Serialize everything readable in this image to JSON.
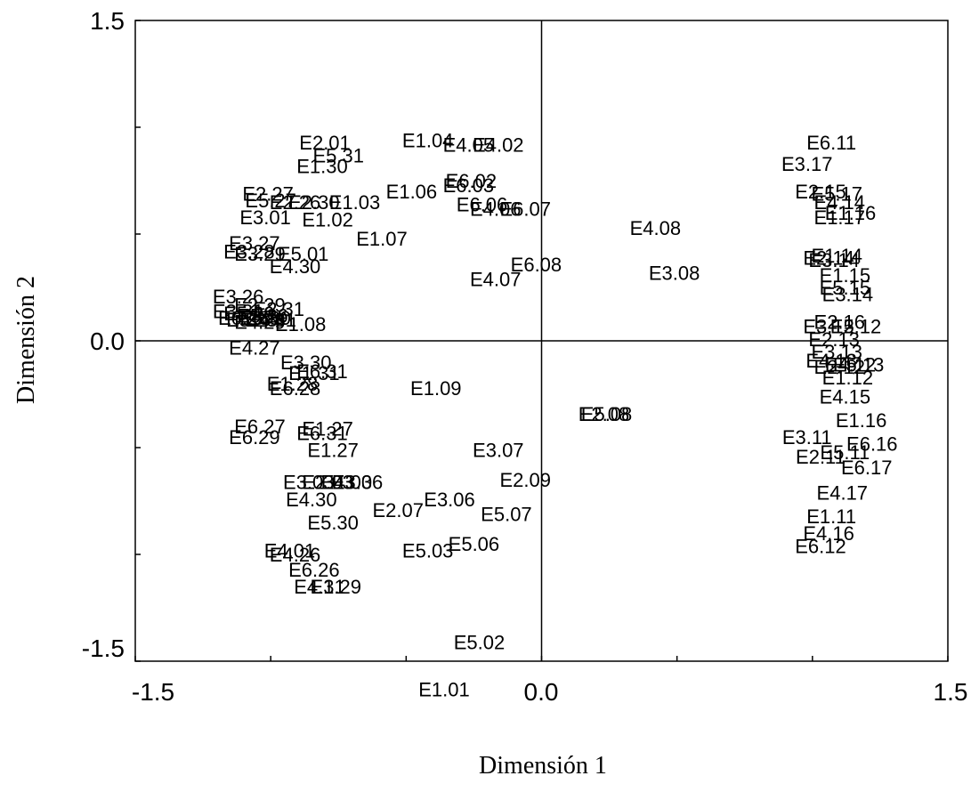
{
  "chart_data": {
    "type": "scatter",
    "title": "",
    "xlabel": "Dimensión 1",
    "ylabel": "Dimensión 2",
    "xlim": [
      -1.5,
      1.5
    ],
    "ylim": [
      -1.5,
      1.5
    ],
    "x_tick_labels": [
      "-1.5",
      "0.0",
      "1.5"
    ],
    "y_tick_labels": [
      "1.5",
      "0.0",
      "-1.5"
    ],
    "grid": false,
    "reference_lines": [
      0,
      0
    ],
    "points": [
      {
        "label": "E2.01",
        "x": -0.8,
        "y": 0.92
      },
      {
        "label": "E1.04",
        "x": -0.42,
        "y": 0.93
      },
      {
        "label": "E4.05",
        "x": -0.27,
        "y": 0.91
      },
      {
        "label": "E4.02",
        "x": -0.16,
        "y": 0.91
      },
      {
        "label": "E5.31",
        "x": -0.75,
        "y": 0.86
      },
      {
        "label": "E1.30",
        "x": -0.81,
        "y": 0.81
      },
      {
        "label": "E6.02",
        "x": -0.26,
        "y": 0.74
      },
      {
        "label": "E6.03",
        "x": -0.27,
        "y": 0.72
      },
      {
        "label": "E1.06",
        "x": -0.48,
        "y": 0.69
      },
      {
        "label": "E2.27",
        "x": -1.01,
        "y": 0.68
      },
      {
        "label": "E5.27",
        "x": -1.0,
        "y": 0.65
      },
      {
        "label": "E2.26",
        "x": -0.91,
        "y": 0.64
      },
      {
        "label": "E2.30",
        "x": -0.84,
        "y": 0.64
      },
      {
        "label": "E1.03",
        "x": -0.69,
        "y": 0.64
      },
      {
        "label": "E6.06",
        "x": -0.22,
        "y": 0.63
      },
      {
        "label": "E4.06",
        "x": -0.17,
        "y": 0.61
      },
      {
        "label": "E6.07",
        "x": -0.06,
        "y": 0.61
      },
      {
        "label": "E3.01",
        "x": -1.02,
        "y": 0.57
      },
      {
        "label": "E1.02",
        "x": -0.79,
        "y": 0.56
      },
      {
        "label": "E4.08",
        "x": 0.42,
        "y": 0.52
      },
      {
        "label": "E1.07",
        "x": -0.59,
        "y": 0.47
      },
      {
        "label": "E3.27",
        "x": -1.06,
        "y": 0.45
      },
      {
        "label": "E3.28",
        "x": -1.08,
        "y": 0.41
      },
      {
        "label": "E3.29",
        "x": -1.04,
        "y": 0.4
      },
      {
        "label": "E5.01",
        "x": -0.88,
        "y": 0.4
      },
      {
        "label": "E4.30",
        "x": -0.91,
        "y": 0.34
      },
      {
        "label": "E6.08",
        "x": -0.02,
        "y": 0.35
      },
      {
        "label": "E3.08",
        "x": 0.49,
        "y": 0.31
      },
      {
        "label": "E4.07",
        "x": -0.17,
        "y": 0.28
      },
      {
        "label": "E3.26",
        "x": -1.12,
        "y": 0.2
      },
      {
        "label": "E2.29",
        "x": -1.04,
        "y": 0.16
      },
      {
        "label": "E2.31",
        "x": -0.97,
        "y": 0.14
      },
      {
        "label": "E5.29",
        "x": -1.08,
        "y": 0.12
      },
      {
        "label": "E6.30",
        "x": -1.02,
        "y": 0.1
      },
      {
        "label": "E3.31",
        "x": -1.12,
        "y": 0.13
      },
      {
        "label": "E5.28",
        "x": -1.07,
        "y": 0.09
      },
      {
        "label": "E4.29",
        "x": -1.04,
        "y": 0.08
      },
      {
        "label": "E6.26",
        "x": -1.1,
        "y": 0.1
      },
      {
        "label": "E4.31",
        "x": -1.0,
        "y": 0.09
      },
      {
        "label": "E5.26",
        "x": -1.03,
        "y": 0.11
      },
      {
        "label": "E1.08",
        "x": -0.89,
        "y": 0.07
      },
      {
        "label": "E4.27",
        "x": -1.06,
        "y": -0.04
      },
      {
        "label": "E3.30",
        "x": -0.87,
        "y": -0.11
      },
      {
        "label": "E6.31",
        "x": -0.81,
        "y": -0.15
      },
      {
        "label": "E1.31",
        "x": -0.84,
        "y": -0.16
      },
      {
        "label": "E6.28",
        "x": -0.91,
        "y": -0.23
      },
      {
        "label": "E1.28",
        "x": -0.92,
        "y": -0.21
      },
      {
        "label": "E1.09",
        "x": -0.39,
        "y": -0.23
      },
      {
        "label": "E2.08",
        "x": 0.23,
        "y": -0.35
      },
      {
        "label": "E5.08",
        "x": 0.24,
        "y": -0.35
      },
      {
        "label": "E6.27",
        "x": -1.04,
        "y": -0.41
      },
      {
        "label": "E6.29",
        "x": -1.06,
        "y": -0.46
      },
      {
        "label": "E1.27",
        "x": -0.79,
        "y": -0.42
      },
      {
        "label": "E6.31b",
        "display": "E6.31",
        "x": -0.81,
        "y": -0.44
      },
      {
        "label": "E1.27b",
        "display": "E1.27",
        "x": -0.77,
        "y": -0.52
      },
      {
        "label": "E3.07",
        "x": -0.16,
        "y": -0.52
      },
      {
        "label": "E3.03",
        "x": -0.86,
        "y": -0.67
      },
      {
        "label": "E2.03",
        "x": -0.79,
        "y": -0.67
      },
      {
        "label": "E4.03",
        "x": -0.72,
        "y": -0.67
      },
      {
        "label": "E3.06b",
        "display": "E3.06",
        "x": -0.68,
        "y": -0.67
      },
      {
        "label": "E2.09",
        "x": -0.06,
        "y": -0.66
      },
      {
        "label": "E4.30b",
        "display": "E4.30",
        "x": -0.85,
        "y": -0.75
      },
      {
        "label": "E2.07",
        "x": -0.53,
        "y": -0.8
      },
      {
        "label": "E3.06",
        "x": -0.34,
        "y": -0.75
      },
      {
        "label": "E5.07",
        "x": -0.13,
        "y": -0.82
      },
      {
        "label": "E5.30",
        "x": -0.77,
        "y": -0.86
      },
      {
        "label": "E5.06",
        "x": -0.25,
        "y": -0.96
      },
      {
        "label": "E5.03",
        "x": -0.42,
        "y": -0.99
      },
      {
        "label": "E4.01",
        "x": -0.93,
        "y": -0.99
      },
      {
        "label": "E4.26",
        "x": -0.91,
        "y": -1.01
      },
      {
        "label": "E6.26b",
        "display": "E6.26",
        "x": -0.84,
        "y": -1.08
      },
      {
        "label": "E4.31b",
        "display": "E4.31",
        "x": -0.82,
        "y": -1.16
      },
      {
        "label": "E1.29",
        "x": -0.76,
        "y": -1.16
      },
      {
        "label": "E5.02",
        "x": -0.23,
        "y": -1.42
      },
      {
        "label": "E1.01",
        "x": -0.36,
        "y": -1.64
      },
      {
        "label": "E6.11",
        "x": 1.07,
        "y": 0.92
      },
      {
        "label": "E3.17",
        "x": 0.98,
        "y": 0.82
      },
      {
        "label": "E2.15",
        "x": 1.03,
        "y": 0.69
      },
      {
        "label": "E5.17",
        "x": 1.09,
        "y": 0.68
      },
      {
        "label": "E4.14",
        "x": 1.1,
        "y": 0.64
      },
      {
        "label": "E1.16",
        "x": 1.14,
        "y": 0.59
      },
      {
        "label": "E1.17",
        "x": 1.1,
        "y": 0.57
      },
      {
        "label": "E1.14",
        "x": 1.09,
        "y": 0.39
      },
      {
        "label": "E2.14",
        "x": 1.06,
        "y": 0.38
      },
      {
        "label": "E3.14",
        "x": 1.08,
        "y": 0.37
      },
      {
        "label": "E1.15",
        "x": 1.12,
        "y": 0.3
      },
      {
        "label": "E5.15",
        "x": 1.12,
        "y": 0.24
      },
      {
        "label": "E3.14b",
        "display": "E3.14",
        "x": 1.13,
        "y": 0.21
      },
      {
        "label": "E2.16",
        "x": 1.1,
        "y": 0.08
      },
      {
        "label": "E3.12",
        "x": 1.06,
        "y": 0.06
      },
      {
        "label": "E5.12",
        "x": 1.16,
        "y": 0.06
      },
      {
        "label": "E2.13",
        "x": 1.08,
        "y": 0.0
      },
      {
        "label": "E3.13",
        "x": 1.09,
        "y": -0.06
      },
      {
        "label": "E4.13",
        "x": 1.07,
        "y": -0.1
      },
      {
        "label": "E4.12",
        "x": 1.14,
        "y": -0.12
      },
      {
        "label": "E2.12",
        "x": 1.1,
        "y": -0.13
      },
      {
        "label": "E5.13",
        "x": 1.17,
        "y": -0.12
      },
      {
        "label": "E1.12",
        "x": 1.13,
        "y": -0.18
      },
      {
        "label": "E4.15",
        "x": 1.12,
        "y": -0.27
      },
      {
        "label": "E1.16b",
        "display": "E1.16",
        "x": 1.18,
        "y": -0.38
      },
      {
        "label": "E3.11",
        "x": 0.98,
        "y": -0.46
      },
      {
        "label": "E6.16",
        "x": 1.22,
        "y": -0.49
      },
      {
        "label": "E2.11",
        "x": 1.03,
        "y": -0.55
      },
      {
        "label": "E5.11",
        "x": 1.12,
        "y": -0.53
      },
      {
        "label": "E6.17",
        "x": 1.2,
        "y": -0.6
      },
      {
        "label": "E4.17",
        "x": 1.11,
        "y": -0.72
      },
      {
        "label": "E1.11",
        "x": 1.07,
        "y": -0.83
      },
      {
        "label": "E4.16",
        "x": 1.06,
        "y": -0.91
      },
      {
        "label": "E6.12",
        "x": 1.03,
        "y": -0.97
      }
    ]
  }
}
